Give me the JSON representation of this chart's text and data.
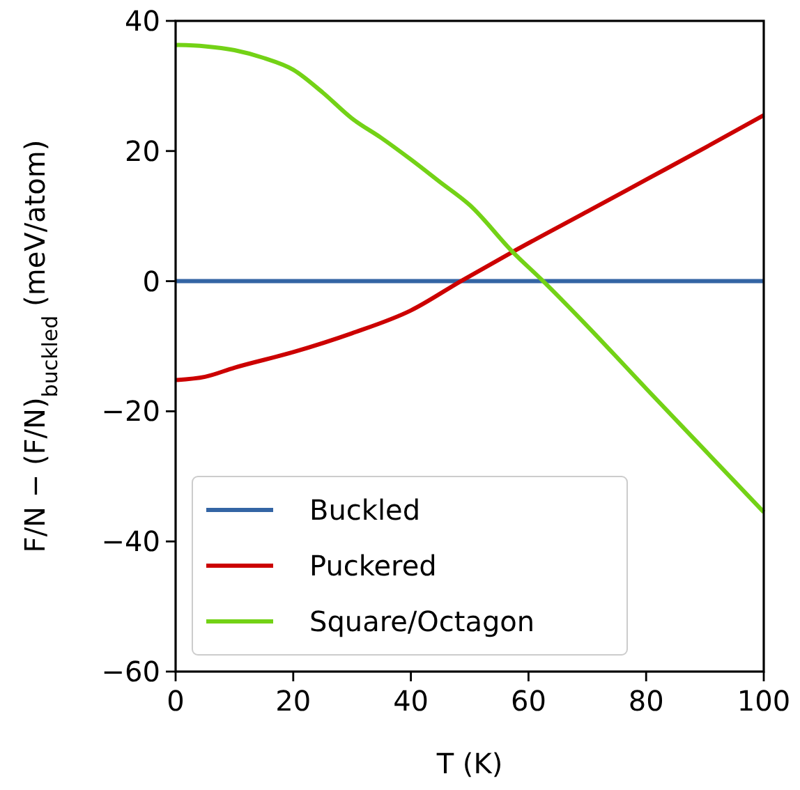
{
  "chart_data": {
    "type": "line",
    "xlabel": "T (K)",
    "ylabel": "F/N − (F/N)$_{buckled}$   (meV/atom)",
    "xlim": [
      0,
      100
    ],
    "ylim": [
      -60,
      40
    ],
    "xticks": [
      0,
      20,
      40,
      60,
      80,
      100
    ],
    "yticks": [
      -60,
      -40,
      -20,
      0,
      20,
      40
    ],
    "legend": "bottom left",
    "grid": false,
    "line_style": "solid",
    "marker": "none",
    "series": [
      {
        "name": "Buckled",
        "color": "#3465a4",
        "x": [
          0,
          100
        ],
        "values": [
          0,
          0
        ]
      },
      {
        "name": "Puckered",
        "color": "#cc0000",
        "x": [
          0,
          5,
          10,
          20,
          30,
          40,
          48.5,
          57.3,
          70,
          80,
          90,
          100
        ],
        "values": [
          -15.2,
          -14.7,
          -13.3,
          -10.9,
          -8,
          -4.5,
          0,
          4.5,
          10.7,
          15.6,
          20.5,
          25.5
        ]
      },
      {
        "name": "Square/Octagon",
        "color": "#73d216",
        "x": [
          0,
          5,
          10,
          15,
          20,
          25,
          30,
          35,
          40,
          45,
          50,
          57.3,
          62.5,
          70,
          80,
          90,
          100
        ],
        "values": [
          36.3,
          36.1,
          35.5,
          34.3,
          32.5,
          29,
          25,
          22,
          18.7,
          15.2,
          11.7,
          4.5,
          0,
          -6.9,
          -16.5,
          -26,
          -35.5
        ]
      }
    ]
  }
}
